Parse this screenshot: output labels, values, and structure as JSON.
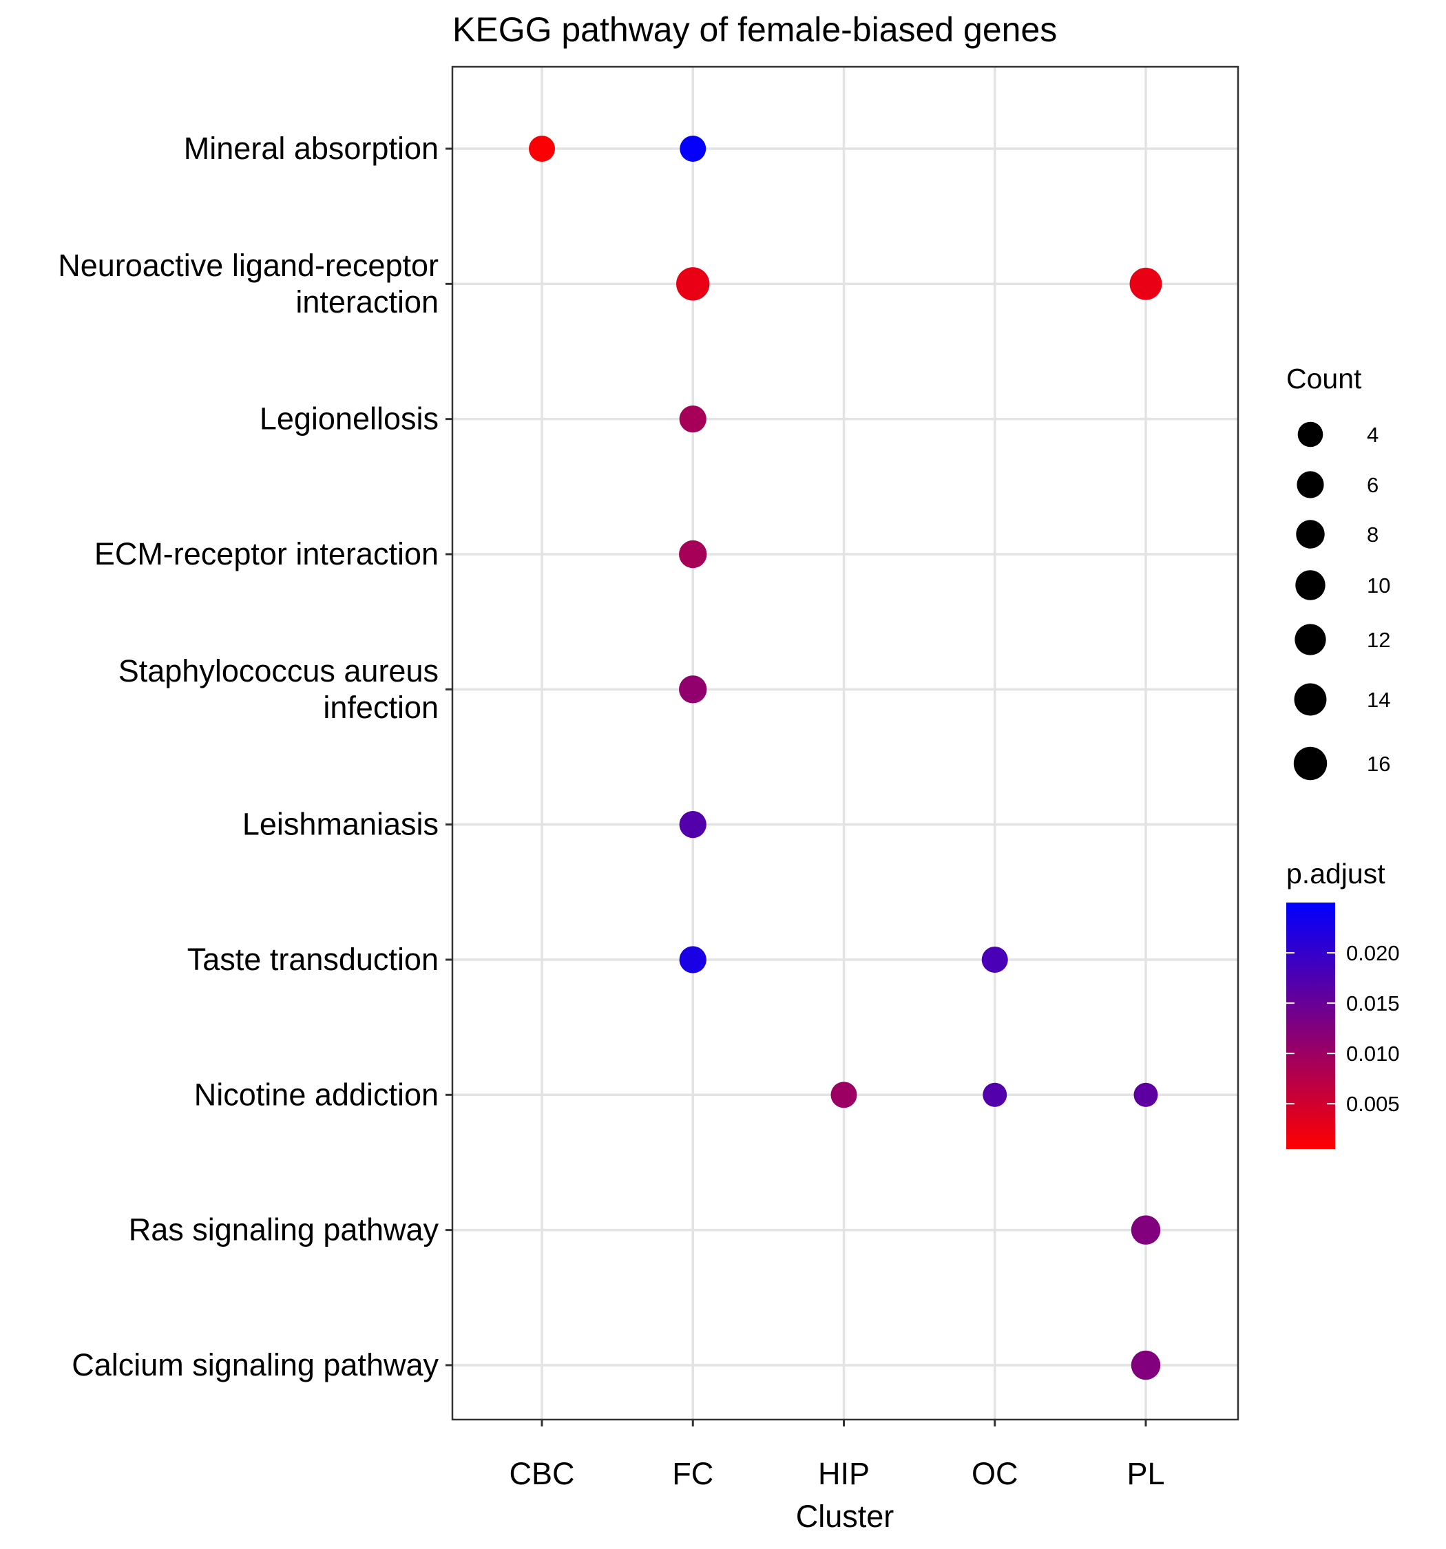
{
  "chart_data": {
    "type": "scatter",
    "title": "KEGG pathway of female-biased genes",
    "xlabel": "Cluster",
    "ylabel": "",
    "x_categories": [
      "CBC",
      "FC",
      "HIP",
      "OC",
      "PL"
    ],
    "y_categories": [
      "Mineral absorption",
      "Neuroactive ligand-receptor\ninteraction",
      "Legionellosis",
      "ECM-receptor interaction",
      "Staphylococcus aureus\ninfection",
      "Leishmaniasis",
      "Taste transduction",
      "Nicotine addiction",
      "Ras signaling pathway",
      "Calcium signaling pathway"
    ],
    "points": [
      {
        "cluster": "CBC",
        "pathway": "Mineral absorption",
        "count": 5,
        "p_adjust": 0.001
      },
      {
        "cluster": "FC",
        "pathway": "Mineral absorption",
        "count": 5,
        "p_adjust": 0.0245
      },
      {
        "cluster": "FC",
        "pathway": "Neuroactive ligand-receptor\ninteraction",
        "count": 16,
        "p_adjust": 0.0025
      },
      {
        "cluster": "FC",
        "pathway": "Legionellosis",
        "count": 6,
        "p_adjust": 0.009
      },
      {
        "cluster": "FC",
        "pathway": "ECM-receptor interaction",
        "count": 7,
        "p_adjust": 0.009
      },
      {
        "cluster": "FC",
        "pathway": "Staphylococcus aureus\ninfection",
        "count": 7,
        "p_adjust": 0.011
      },
      {
        "cluster": "FC",
        "pathway": "Leishmaniasis",
        "count": 6,
        "p_adjust": 0.017
      },
      {
        "cluster": "FC",
        "pathway": "Taste transduction",
        "count": 6,
        "p_adjust": 0.0225
      },
      {
        "cluster": "OC",
        "pathway": "Taste transduction",
        "count": 5,
        "p_adjust": 0.018
      },
      {
        "cluster": "HIP",
        "pathway": "Nicotine addiction",
        "count": 5,
        "p_adjust": 0.01
      },
      {
        "cluster": "OC",
        "pathway": "Nicotine addiction",
        "count": 3,
        "p_adjust": 0.017
      },
      {
        "cluster": "PL",
        "pathway": "Nicotine addiction",
        "count": 3,
        "p_adjust": 0.016
      },
      {
        "cluster": "PL",
        "pathway": "Neuroactive ligand-receptor\ninteraction",
        "count": 14,
        "p_adjust": 0.0025
      },
      {
        "cluster": "PL",
        "pathway": "Ras signaling pathway",
        "count": 9,
        "p_adjust": 0.0125
      },
      {
        "cluster": "PL",
        "pathway": "Calcium signaling pathway",
        "count": 9,
        "p_adjust": 0.0125
      }
    ],
    "size_legend": {
      "title": "Count",
      "values": [
        4,
        6,
        8,
        10,
        12,
        14,
        16
      ]
    },
    "color_legend": {
      "title": "p.adjust",
      "min": 0.0005,
      "max": 0.025,
      "ticks": [
        0.005,
        0.01,
        0.015,
        0.02
      ],
      "tick_labels": [
        "0.005",
        "0.010",
        "0.015",
        "0.020"
      ],
      "low_color": "#ff0000",
      "high_color": "#0000ff"
    },
    "grid": true
  }
}
